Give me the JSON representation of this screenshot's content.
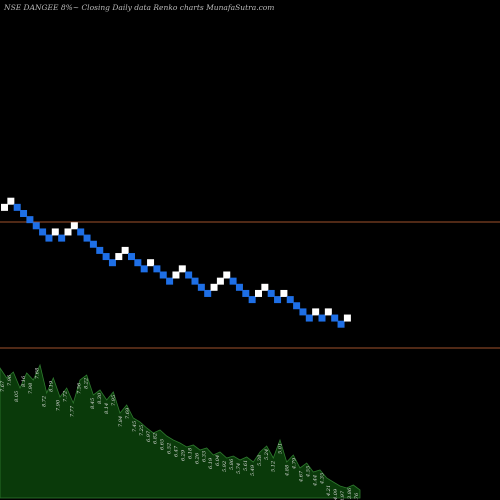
{
  "chart_data": {
    "type": "renko",
    "title": "NSE DANGEE 8%~ Closing Daily data Renko charts MunafaSutra.com",
    "colors": {
      "background": "#000000",
      "brick_up": "#ffffff",
      "brick_down": "#1e6fe6",
      "support_line": "#a0522d",
      "volume_fill": "#0a3a0a",
      "volume_outline": "#2f7a2f"
    },
    "bricks": [
      "up",
      "up",
      "down",
      "down",
      "down",
      "down",
      "down",
      "down",
      "up",
      "down",
      "up",
      "up",
      "down",
      "down",
      "down",
      "down",
      "down",
      "down",
      "up",
      "up",
      "down",
      "down",
      "down",
      "up",
      "down",
      "down",
      "down",
      "up",
      "up",
      "down",
      "down",
      "down",
      "down",
      "up",
      "up",
      "up",
      "down",
      "down",
      "down",
      "down",
      "up",
      "up",
      "down",
      "down",
      "up",
      "down",
      "down",
      "down",
      "down",
      "up",
      "down",
      "up",
      "down",
      "down",
      "up"
    ],
    "lines": [
      "upper",
      "lower"
    ],
    "volume_labels": [
      "7.67",
      "7.96",
      "8.05",
      "8.16",
      "7.98",
      "7.68",
      "8.72",
      "8.19",
      "7.90",
      "7.72",
      "7.77",
      "7.56",
      "8.22",
      "8.45",
      "8.30",
      "8.14",
      "7.95",
      "7.84",
      "7.69",
      "7.45",
      "7.25",
      "6.97",
      "6.82",
      "6.65",
      "6.52",
      "6.47",
      "6.29",
      "6.18",
      "6.26",
      "6.33",
      "6.19",
      "6.04",
      "5.92",
      "5.86",
      "5.74",
      "5.61",
      "5.49",
      "5.38",
      "5.24",
      "5.12",
      "5.01",
      "4.88",
      "4.79",
      "4.67",
      "4.55",
      "4.44",
      "4.35",
      "4.21",
      "4.09",
      "3.97",
      "3.86",
      "3.76"
    ]
  }
}
